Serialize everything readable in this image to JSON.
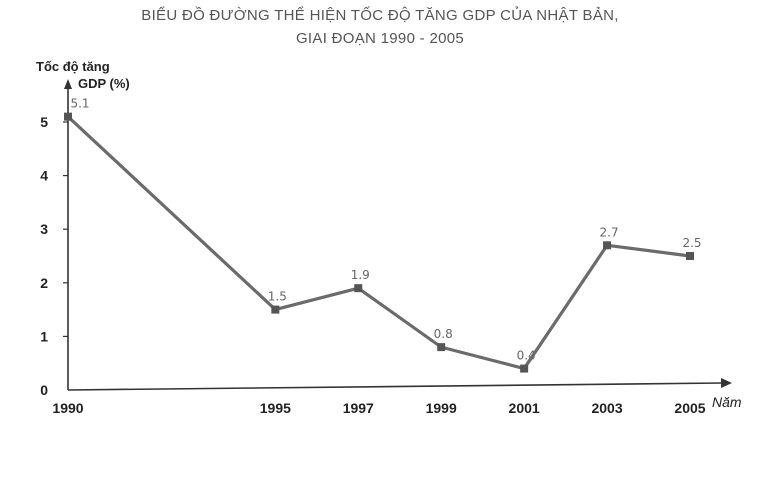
{
  "title": {
    "line1": "BIỂU ĐỒ ĐƯỜNG THỂ HIỆN TỐC ĐỘ TĂNG GDP CỦA NHẬT BẢN,",
    "line2": "GIAI ĐOẠN 1990 - 2005"
  },
  "chart_data": {
    "type": "line",
    "ylabel_line1": "Tốc độ tăng",
    "ylabel_line2": "GDP (%)",
    "xlabel": "Năm",
    "x": [
      "1990",
      "1995",
      "1997",
      "1999",
      "2001",
      "2003",
      "2005"
    ],
    "series": [
      {
        "values": [
          5.1,
          1.5,
          1.9,
          0.8,
          0.4,
          2.7,
          2.5
        ]
      }
    ],
    "data_labels": [
      "5.1",
      "1.5",
      "1.9",
      "0.8",
      "0.4",
      "2.7",
      "2.5"
    ],
    "yticks": [
      0,
      1,
      2,
      3,
      4,
      5
    ],
    "ylim": [
      0,
      5.5
    ],
    "grid": false,
    "line_color": "#6b6b6b"
  }
}
